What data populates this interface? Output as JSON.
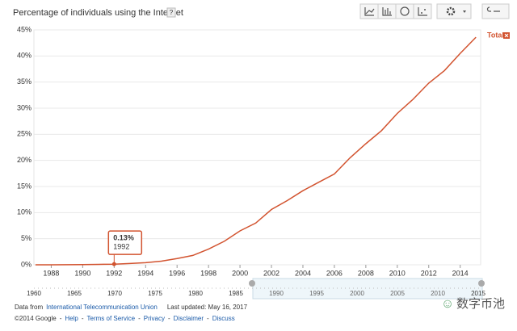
{
  "chart_data": {
    "type": "line",
    "title": "Percentage of individuals using the Internet",
    "help": "?",
    "x": [
      1987,
      1988,
      1989,
      1990,
      1991,
      1992,
      1993,
      1994,
      1995,
      1996,
      1997,
      1998,
      1999,
      2000,
      2001,
      2002,
      2003,
      2004,
      2005,
      2006,
      2007,
      2008,
      2009,
      2010,
      2011,
      2012,
      2013,
      2014,
      2015
    ],
    "series": [
      {
        "name": "Total",
        "color": "#d2532f",
        "values": [
          0,
          0,
          0.01,
          0.05,
          0.08,
          0.13,
          0.25,
          0.4,
          0.7,
          1.2,
          1.8,
          3.0,
          4.5,
          6.5,
          8.0,
          10.6,
          12.3,
          14.2,
          15.8,
          17.4,
          20.5,
          23.2,
          25.7,
          29.0,
          31.7,
          34.8,
          37.2,
          40.5,
          43.6
        ]
      }
    ],
    "xlim": [
      1986.9,
      2015.3
    ],
    "xticks": [
      1988,
      1990,
      1992,
      1994,
      1996,
      1998,
      2000,
      2002,
      2004,
      2006,
      2008,
      2010,
      2012,
      2014
    ],
    "ylim": [
      0,
      45
    ],
    "yticks": [
      {
        "value": 0,
        "label": "0%"
      },
      {
        "value": 5,
        "label": "5%"
      },
      {
        "value": 10,
        "label": "10%"
      },
      {
        "value": 15,
        "label": "15%"
      },
      {
        "value": 20,
        "label": "20%"
      },
      {
        "value": 25,
        "label": "25%"
      },
      {
        "value": 30,
        "label": "30%"
      },
      {
        "value": 35,
        "label": "35%"
      },
      {
        "value": 40,
        "label": "40%"
      },
      {
        "value": 45,
        "label": "45%"
      }
    ],
    "grid": true,
    "legend": "right",
    "callout": {
      "x": 1992,
      "value": 0.13,
      "label": "0.13%"
    }
  },
  "timeline": {
    "xlim": [
      1960,
      2015.4
    ],
    "ticks": [
      1960,
      1965,
      1970,
      1975,
      1980,
      1985,
      2015
    ],
    "selected_ticks": [
      1990,
      1995,
      2000,
      2005,
      2010
    ],
    "selection": [
      1987,
      2015.4
    ]
  },
  "footer": {
    "source_prefix": "Data from",
    "source": "International Telecommunication Union",
    "updated": "Last updated: May 16, 2017",
    "copyright": "©2014 Google",
    "separator": "-",
    "links": [
      "Help",
      "Terms of Service",
      "Privacy",
      "Disclaimer",
      "Discuss"
    ]
  },
  "watermark": "数字币池"
}
